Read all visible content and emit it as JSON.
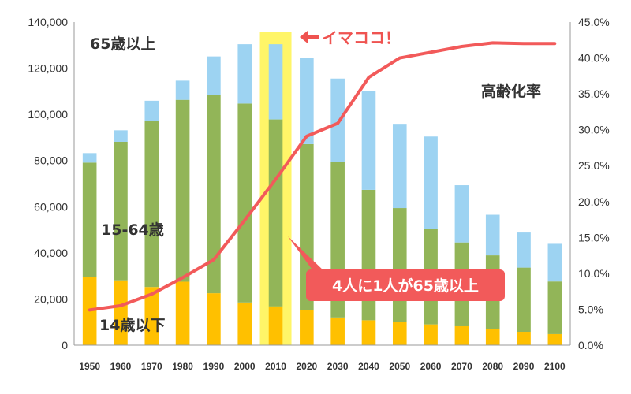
{
  "chart_data": {
    "type": "bar",
    "stacked": true,
    "categories": [
      "1950",
      "1960",
      "1970",
      "1980",
      "1990",
      "2000",
      "2010",
      "2020",
      "2030",
      "2040",
      "2050",
      "2060",
      "2070",
      "2080",
      "2090",
      "2100"
    ],
    "series": [
      {
        "name": "14歳以下",
        "color": "#ffc000",
        "values": [
          29400,
          28100,
          25200,
          27500,
          22500,
          18500,
          16800,
          15100,
          12000,
          10800,
          9900,
          9000,
          8200,
          7000,
          5800,
          4800
        ]
      },
      {
        "name": "15-64歳",
        "color": "#92b558",
        "values": [
          49700,
          60000,
          72100,
          78800,
          85900,
          86200,
          81000,
          72000,
          67500,
          56500,
          49500,
          41300,
          36300,
          31900,
          27800,
          22800
        ]
      },
      {
        "name": "65歳以上",
        "color": "#9dd3f2",
        "values": [
          4100,
          5000,
          8600,
          8300,
          16700,
          25700,
          32600,
          37400,
          36000,
          42700,
          36500,
          40100,
          24800,
          17600,
          15200,
          16300
        ]
      }
    ],
    "line": {
      "name": "高齢化率",
      "color": "#f25a5a",
      "values": [
        4.9,
        5.5,
        7.1,
        9.4,
        11.9,
        17.4,
        23.1,
        29.1,
        30.9,
        37.3,
        40.0,
        40.8,
        41.6,
        42.1,
        42.0,
        42.0
      ]
    },
    "y_left": {
      "ticks": [
        "0",
        "20,000",
        "40,000",
        "60,000",
        "80,000",
        "100,000",
        "120,000",
        "140,000"
      ],
      "range": [
        0,
        140000
      ]
    },
    "y_right": {
      "ticks": [
        "0.0%",
        "5.0%",
        "10.0%",
        "15.0%",
        "20.0%",
        "25.0%",
        "30.0%",
        "35.0%",
        "40.0%",
        "45.0%"
      ],
      "range": [
        0,
        45
      ]
    },
    "highlight": {
      "category": "2010",
      "color": "#fff568",
      "label": "イマココ！"
    },
    "callout": {
      "text": "4人に1人が65歳以上",
      "color": "#f25a5a"
    },
    "labels": {
      "over65": "65歳以上",
      "working": "15-64歳",
      "under14": "14歳以下",
      "rate": "高齢化率"
    },
    "grid": false
  }
}
